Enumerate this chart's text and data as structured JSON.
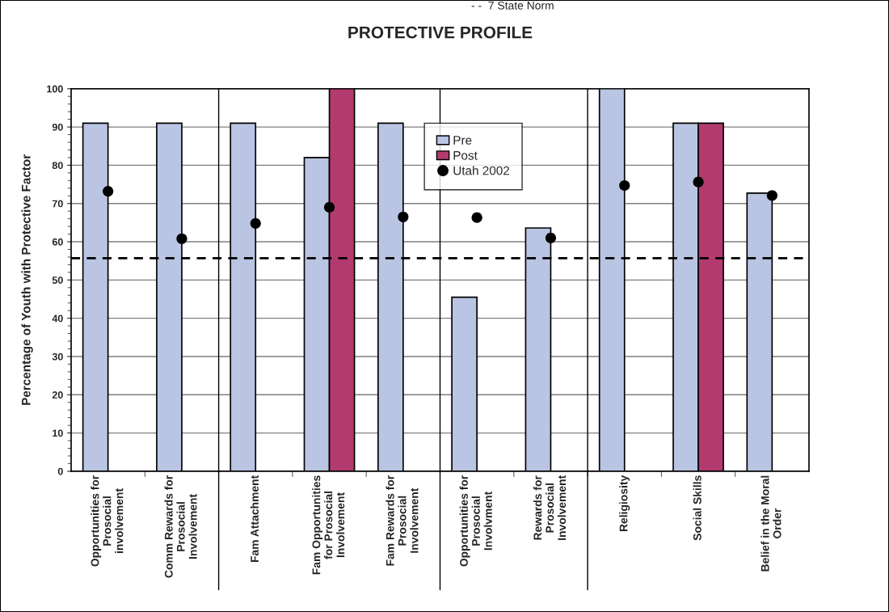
{
  "chart_data": {
    "type": "bar",
    "title": "PROTECTIVE PROFILE",
    "ylabel": "Percentage of Youth with Protective Factor",
    "categories": [
      "Opportunities for\nProsocial\ninvolvement",
      "Comm Rewards for\nProsocial\nInvolvement",
      "Fam Attachment",
      "Fam Opportunities\nfor Prosocial\nInvolvement",
      "Fam Rewards for\nProsocial\nInvolvement",
      "Opportunities for\nProsocial\nInvolvment",
      "Rewards for\nProsocial\nInvolvement",
      "Religiosity",
      "Social Skills",
      "Belief in the Moral\nOrder"
    ],
    "series": [
      {
        "name": "Pre",
        "color": "#bac4e3",
        "values": [
          91,
          91,
          91,
          82,
          91,
          45.5,
          63.6,
          100,
          91,
          72.7
        ]
      },
      {
        "name": "Post",
        "color": "#b33a6e",
        "values": [
          null,
          null,
          null,
          100,
          null,
          null,
          null,
          null,
          91,
          null
        ]
      },
      {
        "name": "Utah 2002",
        "type": "scatter",
        "color": "#000000",
        "marker": "circle",
        "values": [
          73.2,
          60.8,
          64.8,
          69,
          66.5,
          66.3,
          61,
          74.7,
          75.6,
          72.1
        ]
      }
    ],
    "ylim": [
      0,
      100
    ],
    "yticks": [
      0,
      10,
      20,
      30,
      40,
      50,
      60,
      70,
      80,
      90,
      100
    ],
    "grid": "y",
    "legend": "top",
    "ref_lines": [
      {
        "axis": "y",
        "value": 55.7,
        "color": "#000000",
        "line_style": "dashed"
      }
    ],
    "annotations": [
      "- -  7 State Norm"
    ]
  }
}
